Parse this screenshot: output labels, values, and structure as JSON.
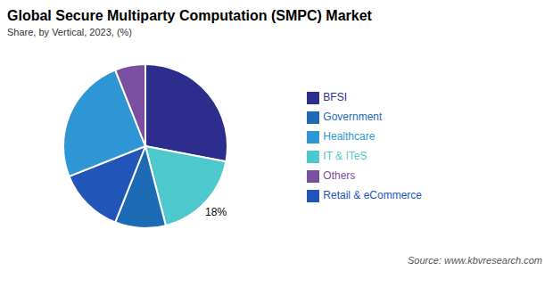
{
  "chart_data": {
    "type": "pie",
    "title": "Global Secure Multiparty Computation (SMPC) Market",
    "subtitle": "Share, by Vertical, 2023, (%)",
    "annotations": [
      "Source: www.kbvresearch.com"
    ],
    "categories": [
      "BFSI",
      "IT & ITeS",
      "Government",
      "Retail & eCommerce",
      "Healthcare",
      "Others"
    ],
    "values": [
      28,
      18,
      10,
      13,
      25,
      6
    ],
    "value_labels": [
      null,
      "18%",
      null,
      null,
      null,
      null
    ],
    "colors": [
      "#2d2d8e",
      "#4dc8cc",
      "#1e6bb5",
      "#2255b8",
      "#2e96d4",
      "#7b4fa0"
    ],
    "legend": "right"
  }
}
